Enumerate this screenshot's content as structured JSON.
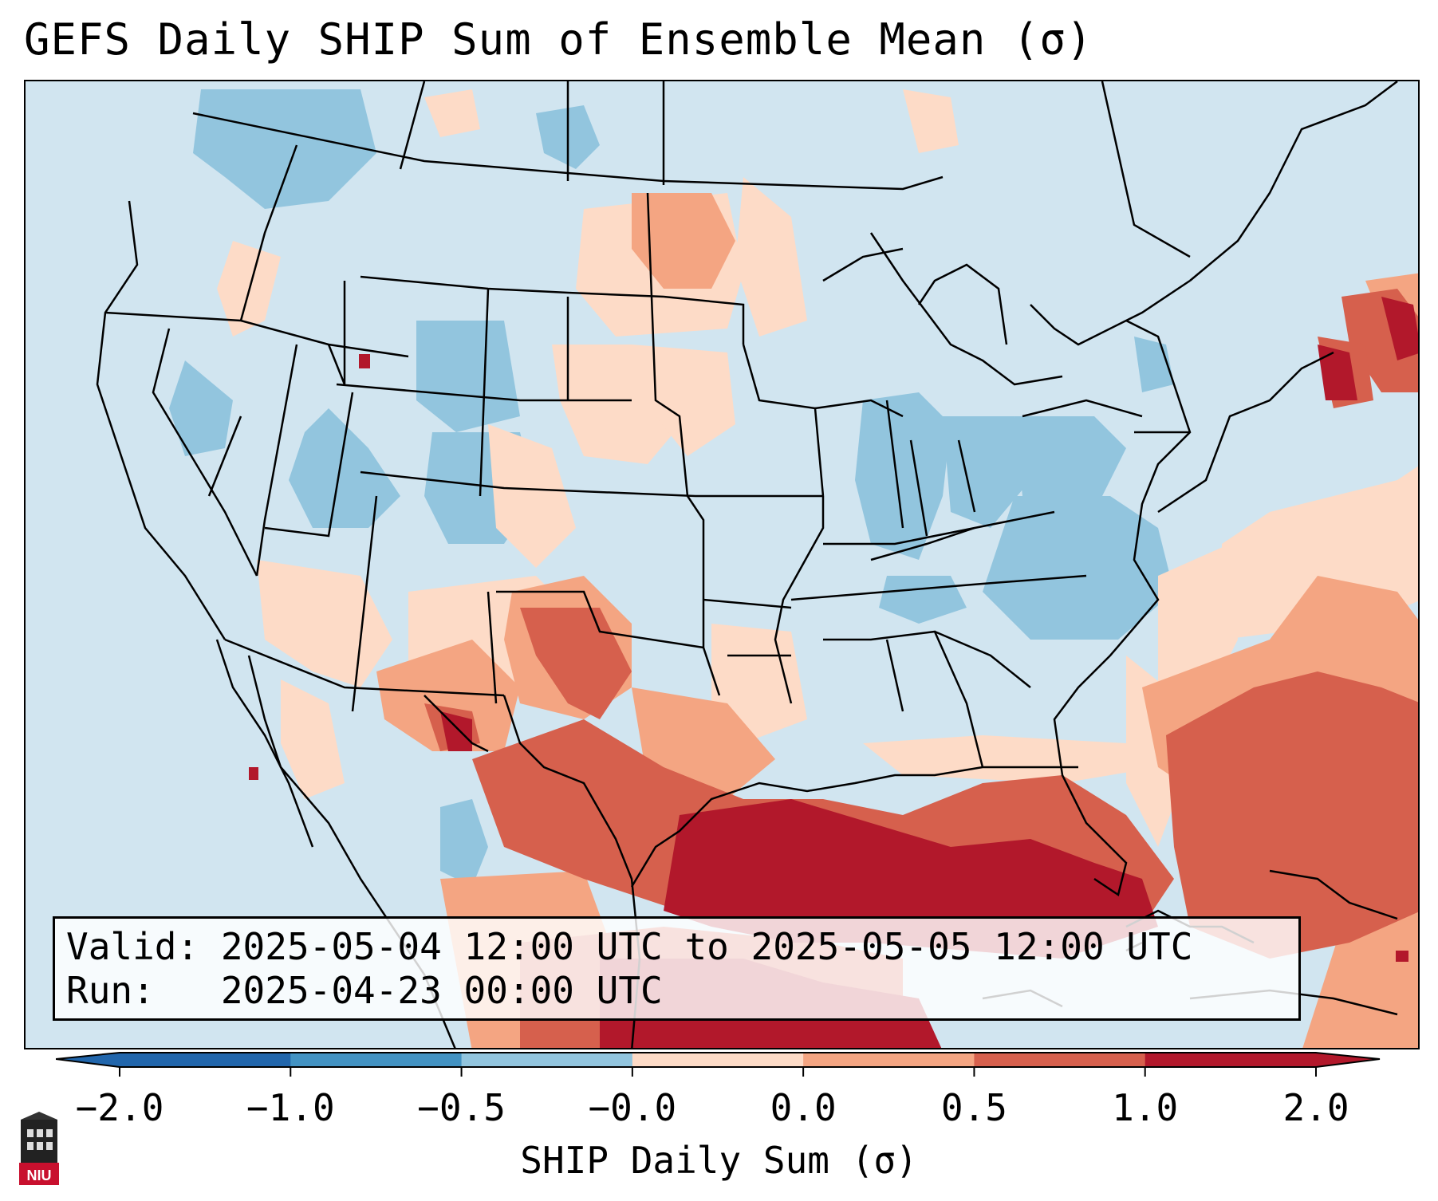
{
  "title": "GEFS Daily SHIP Sum of Ensemble Mean (σ)",
  "info": {
    "valid_line": "Valid: 2025-05-04 12:00 UTC to 2025-05-05 12:00 UTC",
    "run_line": "Run:   2025-04-23 00:00 UTC"
  },
  "colorbar": {
    "label": "SHIP Daily Sum (σ)",
    "ticks": [
      "−2.0",
      "−1.0",
      "−0.5",
      "−0.0",
      "0.0",
      "0.5",
      "1.0",
      "2.0"
    ],
    "colors": [
      "#2166ac",
      "#4393c3",
      "#92c5de",
      "#d1e5f0",
      "#fddbc7",
      "#f4a582",
      "#d6604d",
      "#b2182b"
    ]
  },
  "logo": {
    "text": "NIU",
    "name": "niu-logo"
  },
  "icons": {
    "logo": "university-seal-icon"
  }
}
